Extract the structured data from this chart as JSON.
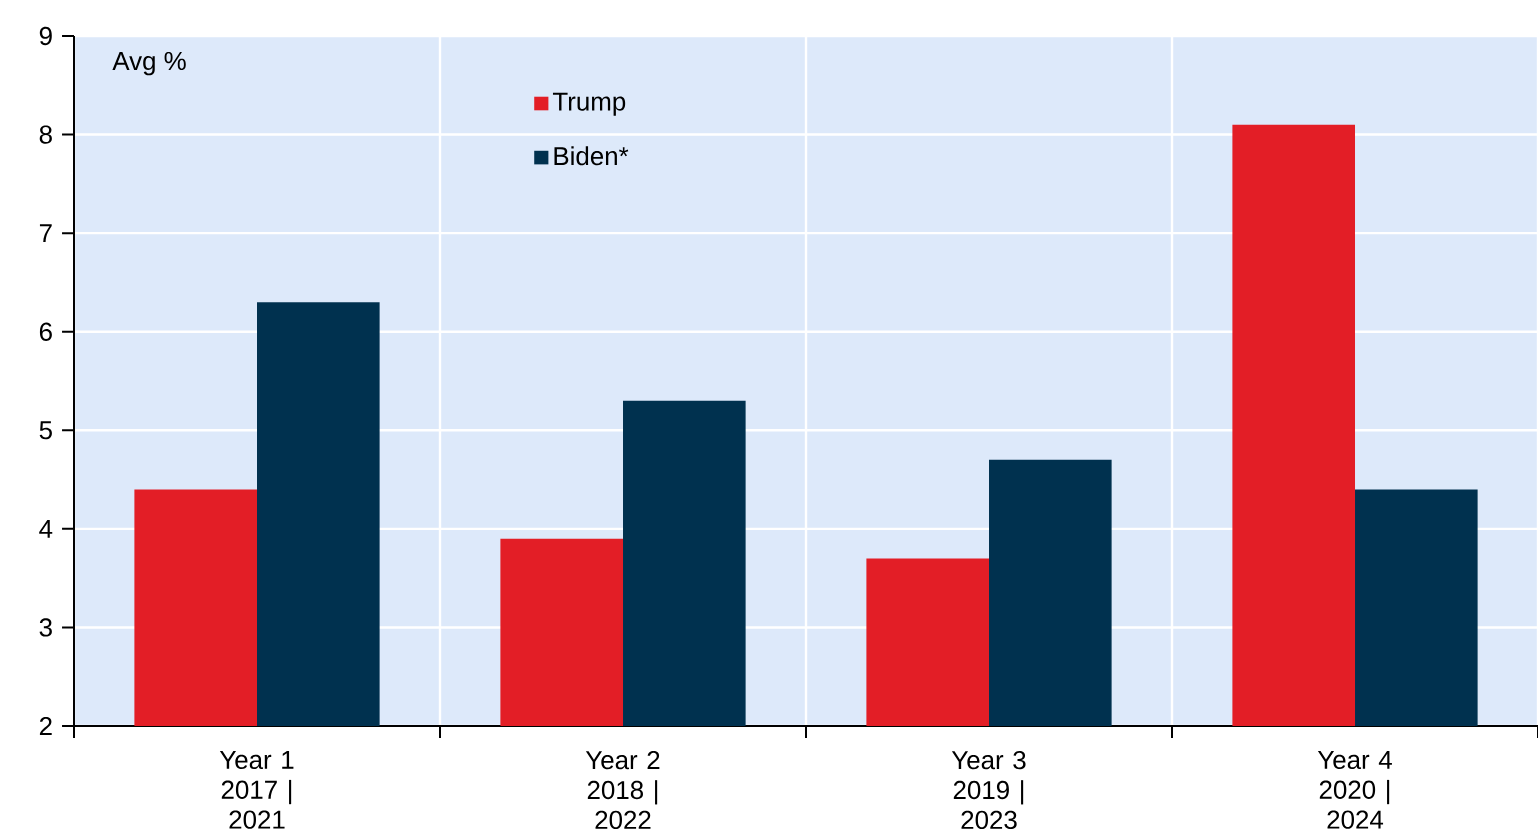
{
  "chart_data": {
    "type": "bar",
    "ylabel": "Avg %",
    "categories": [
      "Year 1 2017 | 2021",
      "Year 2 2018 | 2022",
      "Year 3 2019 | 2023",
      "Year 4 2020 | 2024"
    ],
    "series": [
      {
        "name": "Trump",
        "color": "#e31e26",
        "values": [
          4.4,
          3.9,
          3.7,
          8.1
        ]
      },
      {
        "name": "Biden*",
        "color": "#00314f",
        "values": [
          6.3,
          5.3,
          4.7,
          4.4
        ]
      }
    ],
    "ylim": [
      2,
      9
    ],
    "yticks": [
      2,
      3,
      4,
      5,
      6,
      7,
      8,
      9
    ],
    "grid": true,
    "legend": "top"
  }
}
